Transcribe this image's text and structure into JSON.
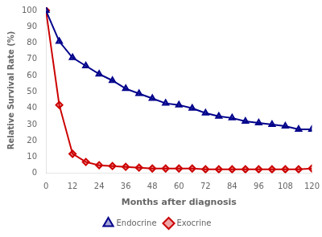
{
  "chart_data": {
    "type": "line",
    "x_label": "Months after diagnosis",
    "y_label": "Relative Survival Rate (%)",
    "x": [
      0,
      6,
      12,
      18,
      24,
      30,
      36,
      42,
      48,
      54,
      60,
      66,
      72,
      78,
      84,
      90,
      96,
      102,
      108,
      114,
      120
    ],
    "series": [
      {
        "name": "Endocrine",
        "color": "#00008B",
        "marker": "triangle",
        "values": [
          100,
          81,
          71,
          66,
          61,
          57,
          52,
          49,
          46,
          43,
          42,
          40,
          37,
          35,
          34,
          32,
          31,
          30,
          29,
          27,
          27
        ]
      },
      {
        "name": "Exocrine",
        "color": "#CC0000",
        "marker": "diamond",
        "values": [
          100,
          42,
          12,
          7,
          5,
          4.5,
          4,
          3.5,
          3,
          3,
          3,
          3,
          2.5,
          2.5,
          2.5,
          2.5,
          2.5,
          2.5,
          2.5,
          2.5,
          3
        ]
      }
    ],
    "xlim": [
      0,
      120
    ],
    "ylim": [
      0,
      102
    ],
    "xticks": [
      0,
      12,
      24,
      36,
      48,
      60,
      72,
      84,
      96,
      108,
      120
    ],
    "yticks": [
      0,
      10,
      20,
      30,
      40,
      50,
      60,
      70,
      80,
      90,
      100
    ],
    "grid": false,
    "legend": "bottom"
  }
}
